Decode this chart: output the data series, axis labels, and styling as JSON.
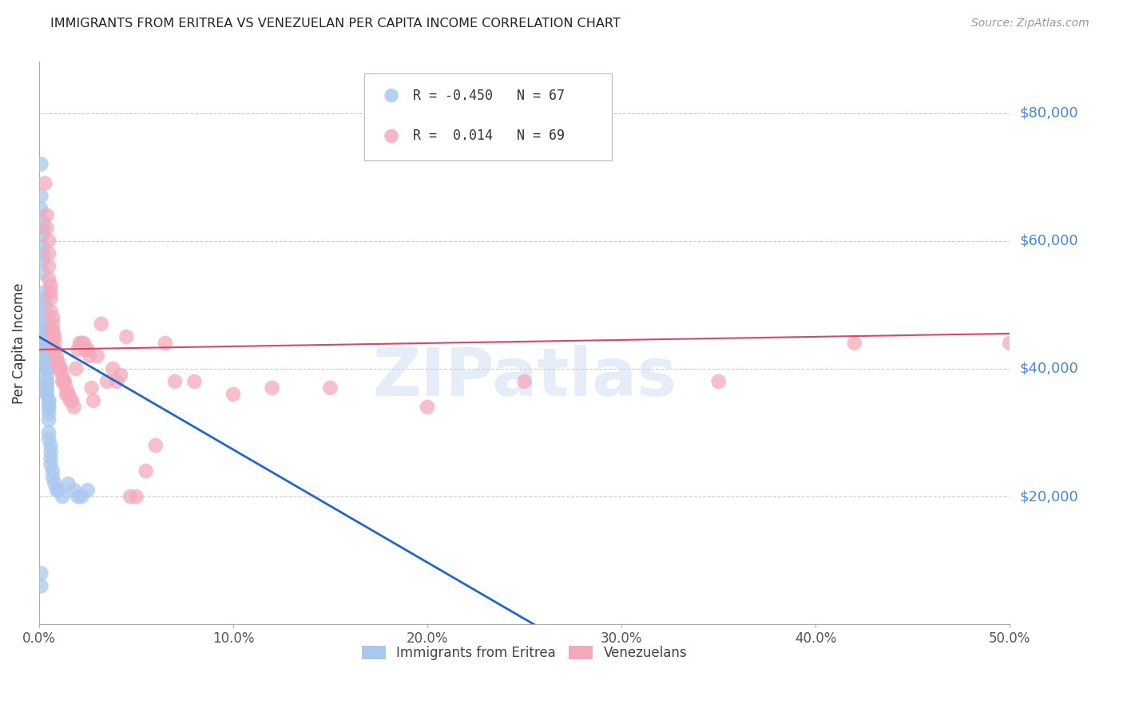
{
  "title": "IMMIGRANTS FROM ERITREA VS VENEZUELAN PER CAPITA INCOME CORRELATION CHART",
  "source": "Source: ZipAtlas.com",
  "ylabel": "Per Capita Income",
  "ytick_labels": [
    "$20,000",
    "$40,000",
    "$60,000",
    "$80,000"
  ],
  "ytick_values": [
    20000,
    40000,
    60000,
    80000
  ],
  "ylim": [
    0,
    88000
  ],
  "xlim": [
    0.0,
    0.5
  ],
  "blue_color": "#aac8ee",
  "pink_color": "#f4aabb",
  "blue_line_color": "#2266cc",
  "pink_line_color": "#dd4466",
  "watermark": "ZIPatlas",
  "legend_blue_r": "-0.450",
  "legend_blue_n": "67",
  "legend_pink_r": "0.014",
  "legend_pink_n": "69",
  "blue_x": [
    0.001,
    0.001,
    0.001,
    0.002,
    0.002,
    0.002,
    0.002,
    0.002,
    0.002,
    0.002,
    0.003,
    0.003,
    0.003,
    0.003,
    0.003,
    0.003,
    0.003,
    0.003,
    0.003,
    0.003,
    0.003,
    0.003,
    0.003,
    0.003,
    0.003,
    0.003,
    0.003,
    0.003,
    0.003,
    0.003,
    0.004,
    0.004,
    0.004,
    0.004,
    0.004,
    0.004,
    0.004,
    0.004,
    0.004,
    0.004,
    0.004,
    0.004,
    0.005,
    0.005,
    0.005,
    0.005,
    0.005,
    0.005,
    0.005,
    0.005,
    0.006,
    0.006,
    0.006,
    0.006,
    0.007,
    0.007,
    0.008,
    0.009,
    0.01,
    0.012,
    0.015,
    0.018,
    0.02,
    0.022,
    0.025,
    0.001,
    0.001
  ],
  "blue_y": [
    72000,
    67000,
    65000,
    63000,
    62000,
    61000,
    59000,
    58000,
    57000,
    55000,
    52000,
    51000,
    50000,
    49000,
    48000,
    47000,
    46000,
    46000,
    45000,
    45000,
    44000,
    44000,
    43000,
    43000,
    43000,
    42000,
    42000,
    42000,
    42000,
    41000,
    41000,
    41000,
    40000,
    40000,
    40000,
    39000,
    38000,
    38000,
    37000,
    37000,
    36000,
    36000,
    35000,
    35000,
    34000,
    34000,
    33000,
    32000,
    30000,
    29000,
    28000,
    27000,
    26000,
    25000,
    24000,
    23000,
    22000,
    21000,
    21000,
    20000,
    22000,
    21000,
    20000,
    20000,
    21000,
    8000,
    6000
  ],
  "pink_x": [
    0.003,
    0.004,
    0.004,
    0.005,
    0.005,
    0.005,
    0.005,
    0.006,
    0.006,
    0.006,
    0.006,
    0.007,
    0.007,
    0.007,
    0.007,
    0.007,
    0.008,
    0.008,
    0.008,
    0.008,
    0.009,
    0.009,
    0.01,
    0.01,
    0.011,
    0.011,
    0.012,
    0.012,
    0.013,
    0.013,
    0.014,
    0.014,
    0.015,
    0.015,
    0.016,
    0.017,
    0.018,
    0.019,
    0.02,
    0.021,
    0.022,
    0.023,
    0.024,
    0.025,
    0.026,
    0.027,
    0.028,
    0.03,
    0.032,
    0.035,
    0.038,
    0.04,
    0.042,
    0.045,
    0.047,
    0.05,
    0.055,
    0.06,
    0.065,
    0.07,
    0.08,
    0.1,
    0.12,
    0.15,
    0.2,
    0.25,
    0.35,
    0.42,
    0.5
  ],
  "pink_y": [
    69000,
    64000,
    62000,
    60000,
    58000,
    56000,
    54000,
    53000,
    52000,
    51000,
    49000,
    48000,
    47000,
    46000,
    46000,
    45000,
    45000,
    44000,
    43000,
    43000,
    42000,
    41000,
    41000,
    40000,
    40000,
    40000,
    39000,
    38000,
    38000,
    38000,
    37000,
    36000,
    36000,
    36000,
    35000,
    35000,
    34000,
    40000,
    43000,
    44000,
    44000,
    44000,
    43000,
    43000,
    42000,
    37000,
    35000,
    42000,
    47000,
    38000,
    40000,
    38000,
    39000,
    45000,
    20000,
    20000,
    24000,
    28000,
    44000,
    38000,
    38000,
    36000,
    37000,
    37000,
    34000,
    38000,
    38000,
    44000,
    44000
  ]
}
